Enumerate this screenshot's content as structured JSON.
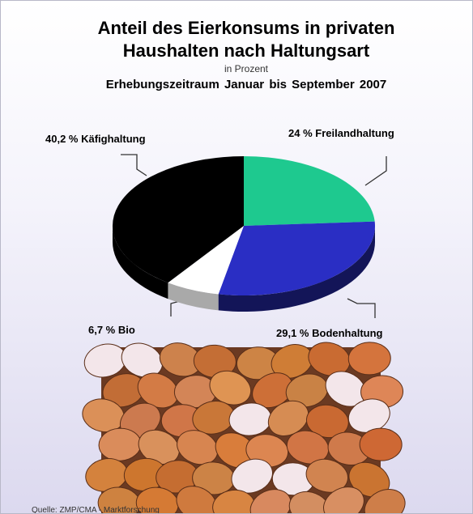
{
  "chart_data": {
    "type": "pie",
    "title": "Anteil des Eierkonsums in privaten Haushalten nach Haltungsart",
    "subtitle": "in Prozent",
    "period": "Erhebungszeitraum  Januar bis September 2007",
    "source": "Quelle: ZMP/CMA - Marktforschung",
    "categories": [
      "Freilandhaltung",
      "Bodenhaltung",
      "Bio",
      "Käfighaltung"
    ],
    "values": [
      24,
      29.1,
      6.7,
      40.2
    ],
    "value_labels": [
      "24 %",
      "29,1 %",
      "6,7 %",
      "40,2 %"
    ],
    "colors": [
      "#1ec98f",
      "#2a2ec4",
      "#ffffff",
      "#000000"
    ]
  }
}
